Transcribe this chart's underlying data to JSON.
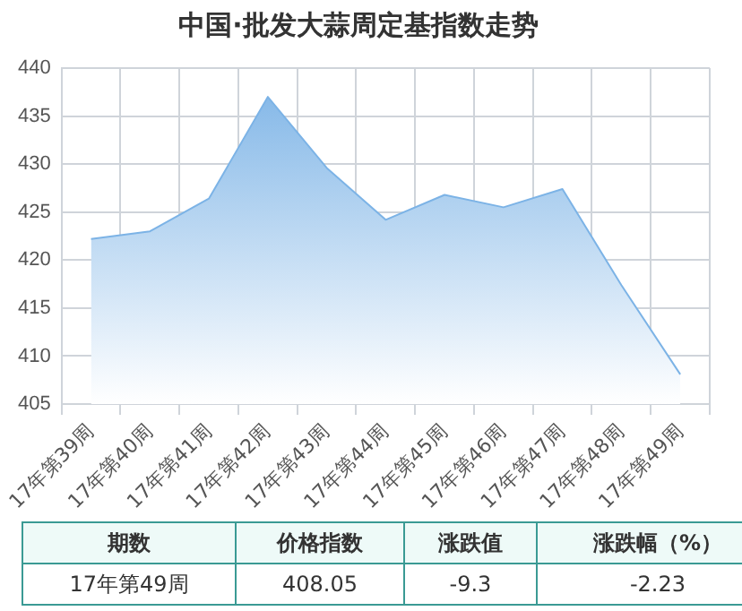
{
  "chart_data": {
    "type": "area",
    "title": "中国·批发大蒜周定基指数走势",
    "categories": [
      "17年第39周",
      "17年第40周",
      "17年第41周",
      "17年第42周",
      "17年第43周",
      "17年第44周",
      "17年第45周",
      "17年第46周",
      "17年第47周",
      "17年第48周",
      "17年第49周"
    ],
    "values": [
      422.2,
      423,
      426.4,
      437,
      429.6,
      424.2,
      426.8,
      425.5,
      427.4,
      417.4,
      408.1
    ],
    "color": "#7cb3e6",
    "ylim": [
      405,
      440
    ],
    "yticks": [
      405,
      410,
      415,
      420,
      425,
      430,
      435,
      440
    ],
    "grid": true,
    "annotations": [
      "期数",
      "价格指数",
      "涨跌值",
      "涨跌幅（%）",
      "17年第49周",
      "408.05",
      "-9.3",
      "-2.23"
    ]
  }
}
